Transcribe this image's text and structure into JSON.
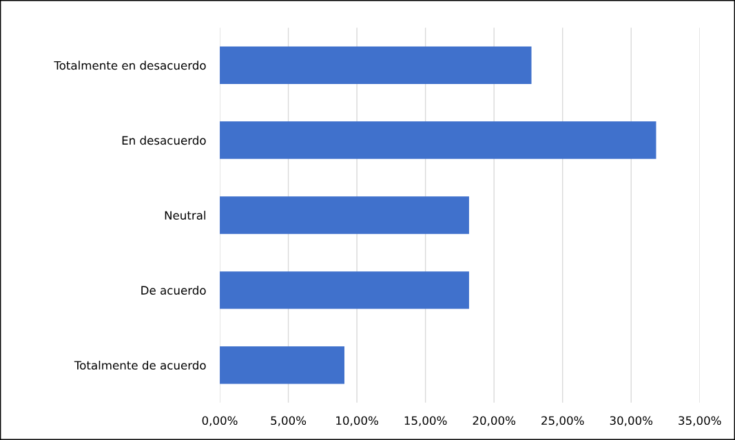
{
  "chart_data": {
    "type": "bar",
    "orientation": "horizontal",
    "categories": [
      "Totalmente en desacuerdo",
      "En desacuerdo",
      "Neutral",
      "De acuerdo",
      "Totalmente de acuerdo"
    ],
    "values": [
      22.73,
      31.82,
      18.18,
      18.18,
      9.09
    ],
    "color": "#4071cc",
    "xlim": [
      0,
      35
    ],
    "xticks": [
      {
        "value": 0,
        "label": "0,00%"
      },
      {
        "value": 5,
        "label": "5,00%"
      },
      {
        "value": 10,
        "label": "10,00%"
      },
      {
        "value": 15,
        "label": "15,00%"
      },
      {
        "value": 20,
        "label": "20,00%"
      },
      {
        "value": 25,
        "label": "25,00%"
      },
      {
        "value": 30,
        "label": "30,00%"
      },
      {
        "value": 35,
        "label": "35,00%"
      }
    ],
    "grid": "x"
  }
}
